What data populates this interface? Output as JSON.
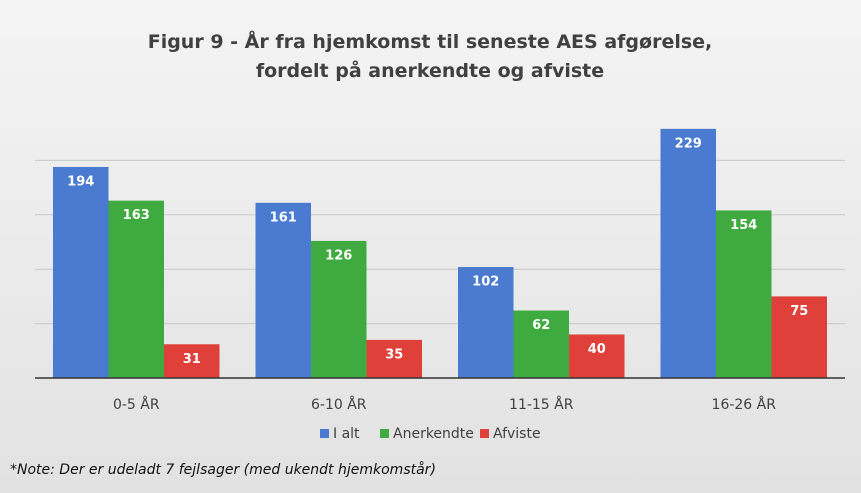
{
  "chart_data": {
    "type": "bar",
    "title": "Figur 9 - År fra hjemkomst til seneste AES afgørelse, fordelt på anerkendte og afviste",
    "categories": [
      "0-5 ÅR",
      "6-10 ÅR",
      "11-15 ÅR",
      "16-26 ÅR"
    ],
    "series": [
      {
        "name": "I alt",
        "color": "#4a7bd0",
        "values": [
          194,
          161,
          102,
          229
        ]
      },
      {
        "name": "Anerkendte",
        "color": "#3faa3f",
        "values": [
          163,
          126,
          62,
          154
        ]
      },
      {
        "name": "Afviste",
        "color": "#e0403a",
        "values": [
          31,
          35,
          40,
          75
        ]
      }
    ],
    "ylim": [
      0,
      250
    ],
    "yticks": [
      0,
      50,
      100,
      150,
      200
    ],
    "grid": true,
    "legend": "bottom",
    "note": "*Note: Der er udeladt 7 fejlsager (med ukendt hjemkomstår)"
  }
}
